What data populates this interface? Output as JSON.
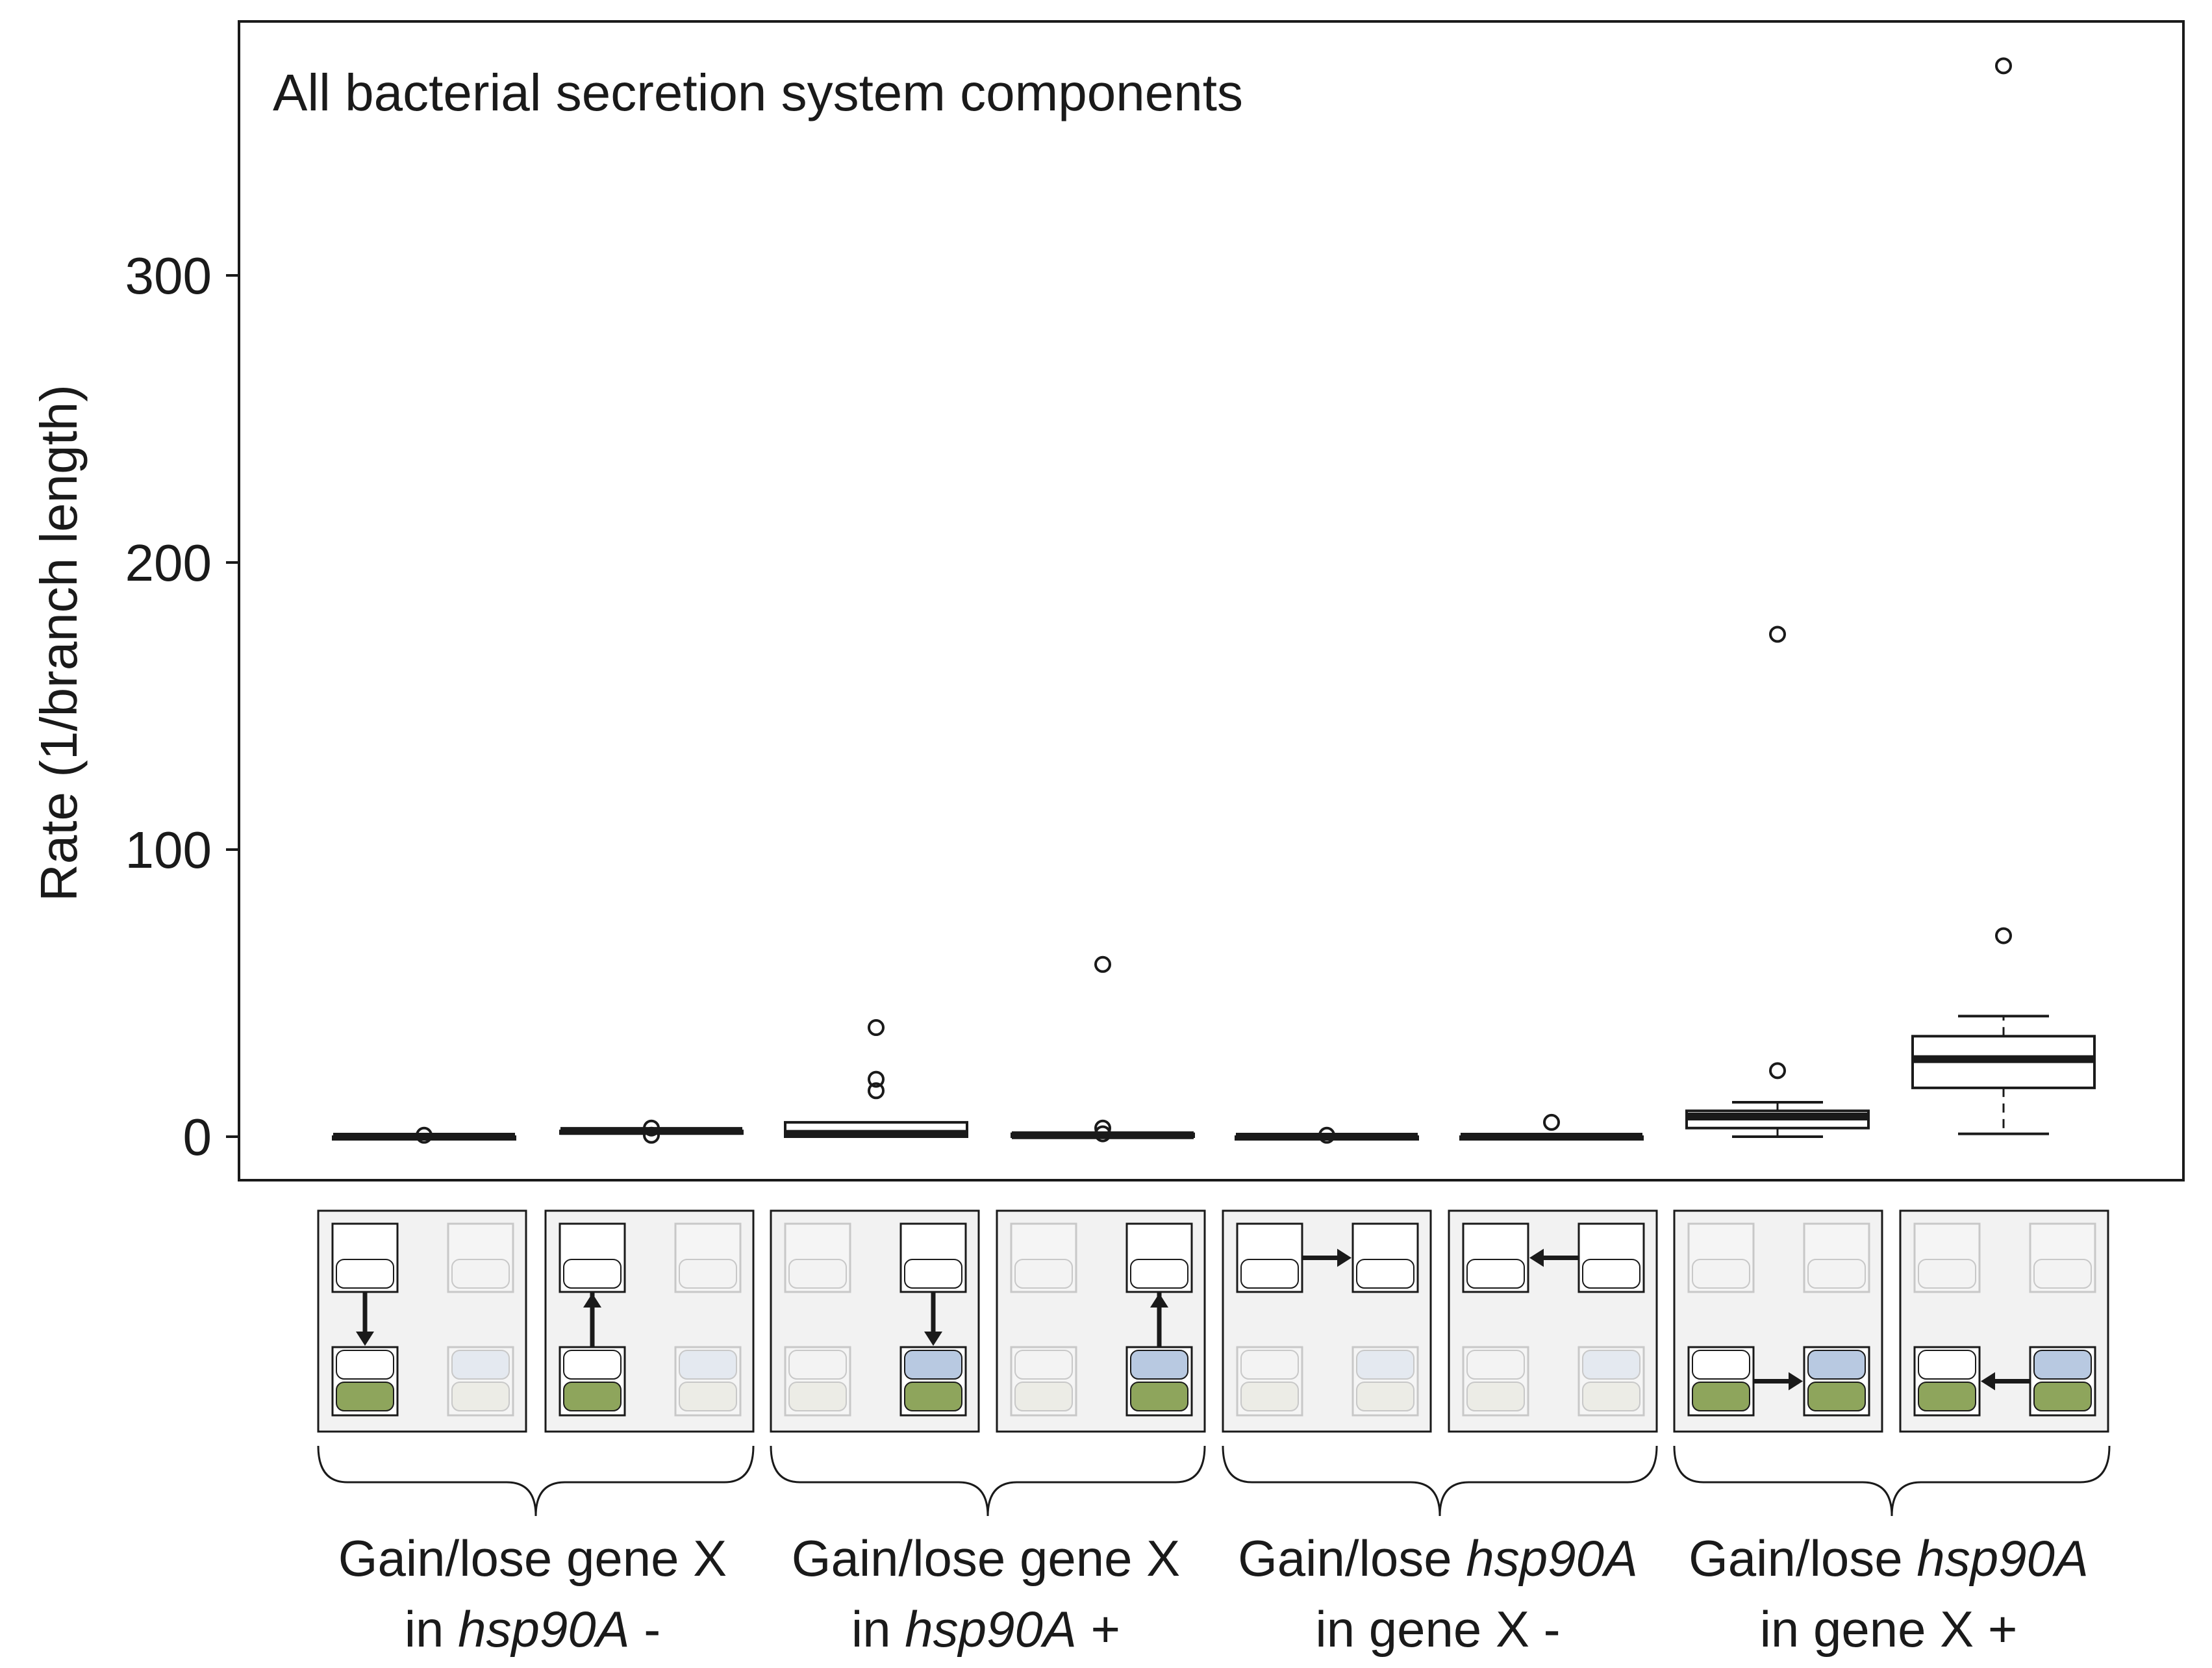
{
  "chart_data": {
    "type": "box",
    "annotation": "All bacterial secretion system components",
    "ylabel": "Rate (1/branch length)",
    "ylim": [
      -15,
      388
    ],
    "yticks": [
      0,
      100,
      200,
      300
    ],
    "grid": false,
    "boxes": [
      {
        "min": 0,
        "q1": 0,
        "median": 0,
        "q3": 0,
        "max": 0,
        "outliers": [
          0.5
        ]
      },
      {
        "min": 2,
        "q1": 2,
        "median": 2,
        "q3": 2,
        "max": 2,
        "outliers": [
          0.5,
          3
        ]
      },
      {
        "min": 0,
        "q1": 0,
        "median": 1,
        "q3": 5,
        "max": 5,
        "outliers": [
          16,
          20,
          38
        ]
      },
      {
        "min": 0,
        "q1": 0,
        "median": 0.5,
        "q3": 1,
        "max": 1,
        "outliers": [
          1,
          3,
          60
        ]
      },
      {
        "min": 0,
        "q1": 0,
        "median": 0,
        "q3": 0,
        "max": 0,
        "outliers": [
          0.5
        ]
      },
      {
        "min": 0,
        "q1": 0,
        "median": 0,
        "q3": 0,
        "max": 0,
        "outliers": [
          5
        ]
      },
      {
        "min": 0,
        "q1": 3,
        "median": 7,
        "q3": 9,
        "max": 12,
        "outliers": [
          23,
          175
        ]
      },
      {
        "min": 1,
        "q1": 17,
        "median": 27,
        "q3": 35,
        "max": 42,
        "outliers": [
          70,
          373
        ]
      }
    ],
    "groups": [
      {
        "line1": "Gain/lose gene X",
        "line2_prefix": "in ",
        "line2_italic": "hsp90A",
        "line2_suffix": " -"
      },
      {
        "line1": "Gain/lose gene X",
        "line2_prefix": "in ",
        "line2_italic": "hsp90A",
        "line2_suffix": " +"
      },
      {
        "line1_prefix": "Gain/lose ",
        "line1_italic": "hsp90A",
        "line2": "in gene X -"
      },
      {
        "line1_prefix": "Gain/lose ",
        "line1_italic": "hsp90A",
        "line2": "in gene X +"
      }
    ]
  },
  "colors": {
    "panel_bg": "#f2f2f2",
    "active_box": "#ffffff",
    "faded_box": "#f5f5f5",
    "blue_active": "#b8c9e1",
    "blue_faded": "#e4e9f0",
    "green_active": "#8ea55c",
    "green_faded": "#ececE6",
    "line": "#1a1a1a",
    "faded_line": "#c8c8c8"
  }
}
